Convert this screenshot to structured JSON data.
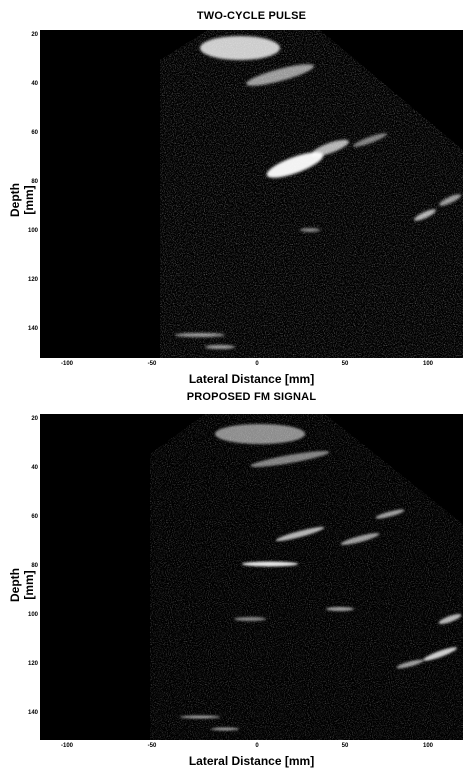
{
  "top": {
    "title": "TWO-CYCLE PULSE",
    "ylabel": "Depth [mm]",
    "xlabel": "Lateral Distance [mm]",
    "yticks": [
      "20",
      "40",
      "60",
      "80",
      "100",
      "120",
      "140"
    ],
    "xticks": [
      "-100",
      "-50",
      "0",
      "50",
      "100"
    ]
  },
  "bottom": {
    "title": "PROPOSED FM SIGNAL",
    "ylabel": "Depth [mm]",
    "xlabel": "Lateral Distance [mm]",
    "yticks": [
      "20",
      "40",
      "60",
      "80",
      "100",
      "120",
      "140"
    ],
    "xticks": [
      "-100",
      "-50",
      "0",
      "50",
      "100"
    ]
  },
  "colors": {
    "background": "#000000",
    "echo": "#ffffff"
  }
}
